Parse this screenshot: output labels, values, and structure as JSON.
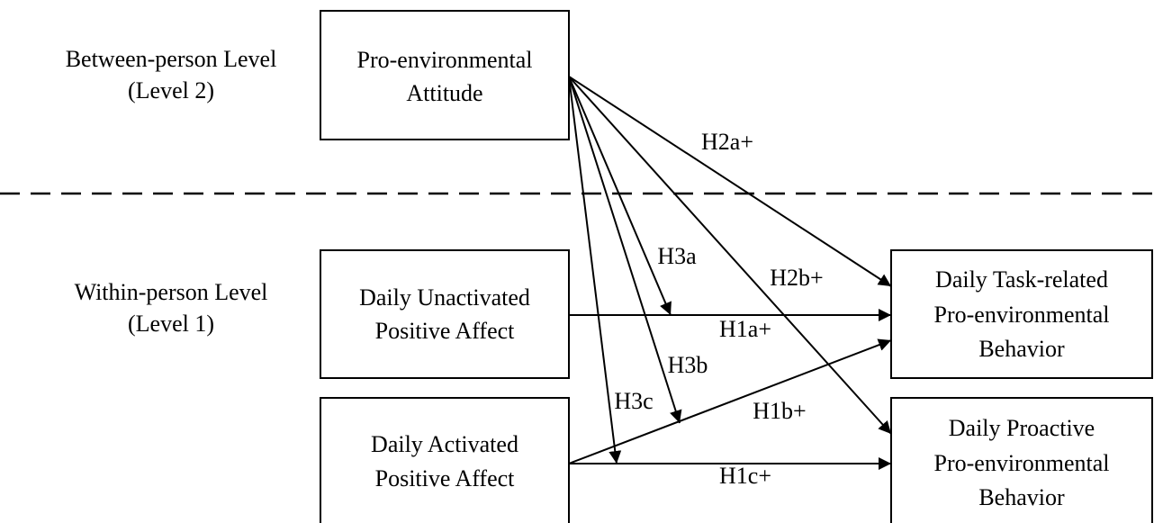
{
  "levels": [
    {
      "lines": [
        "Between-person Level",
        "(Level 2)"
      ]
    },
    {
      "lines": [
        "Within-person Level",
        "(Level 1)"
      ]
    }
  ],
  "nodes": [
    {
      "lines": [
        "Pro-environmental",
        "Attitude"
      ]
    },
    {
      "lines": [
        "Daily Unactivated",
        "Positive Affect"
      ]
    },
    {
      "lines": [
        "Daily Activated",
        "Positive Affect"
      ]
    },
    {
      "lines": [
        "Daily Task-related",
        "Pro-environmental",
        "Behavior"
      ]
    },
    {
      "lines": [
        "Daily Proactive",
        "Pro-environmental",
        "Behavior"
      ]
    }
  ],
  "edges": [
    {
      "label": "H2a+"
    },
    {
      "label": "H2b+"
    },
    {
      "label": "H3a"
    },
    {
      "label": "H3b"
    },
    {
      "label": "H3c"
    },
    {
      "label": "H1a+"
    },
    {
      "label": "H1b+"
    },
    {
      "label": "H1c+"
    }
  ]
}
